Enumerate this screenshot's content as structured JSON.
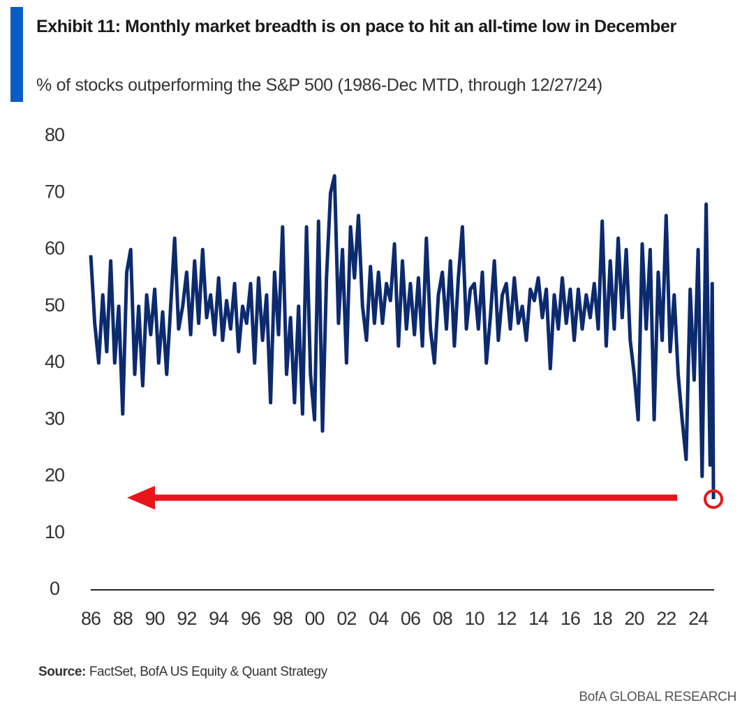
{
  "chart_data": {
    "type": "line",
    "title": "Exhibit 11: Monthly market breadth is on pace to hit an all-time low in December",
    "subtitle": "% of stocks outperforming the S&P 500 (1986-Dec MTD, through 12/27/24)",
    "source_label": "Source:",
    "source": "FactSet, BofA US Equity & Quant Strategy",
    "branding": "BofA GLOBAL RESEARCH",
    "x": [
      1986,
      1986.25,
      1986.5,
      1986.75,
      1987,
      1987.25,
      1987.5,
      1987.75,
      1988,
      1988.25,
      1988.5,
      1988.75,
      1989,
      1989.25,
      1989.5,
      1989.75,
      1990,
      1990.25,
      1990.5,
      1990.75,
      1991,
      1991.25,
      1991.5,
      1991.75,
      1992,
      1992.25,
      1992.5,
      1992.75,
      1993,
      1993.25,
      1993.5,
      1993.75,
      1994,
      1994.25,
      1994.5,
      1994.75,
      1995,
      1995.25,
      1995.5,
      1995.75,
      1996,
      1996.25,
      1996.5,
      1996.75,
      1997,
      1997.25,
      1997.5,
      1997.75,
      1998,
      1998.25,
      1998.5,
      1998.75,
      1999,
      1999.25,
      1999.5,
      1999.75,
      2000,
      2000.25,
      2000.5,
      2000.75,
      2001,
      2001.25,
      2001.5,
      2001.75,
      2002,
      2002.25,
      2002.5,
      2002.75,
      2003,
      2003.25,
      2003.5,
      2003.75,
      2004,
      2004.25,
      2004.5,
      2004.75,
      2005,
      2005.25,
      2005.5,
      2005.75,
      2006,
      2006.25,
      2006.5,
      2006.75,
      2007,
      2007.25,
      2007.5,
      2007.75,
      2008,
      2008.25,
      2008.5,
      2008.75,
      2009,
      2009.25,
      2009.5,
      2009.75,
      2010,
      2010.25,
      2010.5,
      2010.75,
      2011,
      2011.25,
      2011.5,
      2011.75,
      2012,
      2012.25,
      2012.5,
      2012.75,
      2013,
      2013.25,
      2013.5,
      2013.75,
      2014,
      2014.25,
      2014.5,
      2014.75,
      2015,
      2015.25,
      2015.5,
      2015.75,
      2016,
      2016.25,
      2016.5,
      2016.75,
      2017,
      2017.25,
      2017.5,
      2017.75,
      2018,
      2018.25,
      2018.5,
      2018.75,
      2019,
      2019.25,
      2019.5,
      2019.75,
      2020,
      2020.25,
      2020.5,
      2020.75,
      2021,
      2021.25,
      2021.5,
      2021.75,
      2022,
      2022.25,
      2022.5,
      2022.75,
      2023,
      2023.25,
      2023.5,
      2023.75,
      2024,
      2024.25,
      2024.5,
      2024.75,
      2024.88,
      2024.96
    ],
    "series": [
      {
        "name": "% of stocks outperforming",
        "color": "#0c2a6e",
        "values": [
          59,
          47,
          40,
          52,
          42,
          58,
          40,
          50,
          31,
          56,
          60,
          38,
          50,
          36,
          52,
          45,
          53,
          40,
          49,
          38,
          50,
          62,
          46,
          50,
          56,
          45,
          58,
          47,
          60,
          48,
          52,
          45,
          55,
          44,
          51,
          46,
          54,
          42,
          50,
          47,
          54,
          40,
          55,
          44,
          52,
          33,
          56,
          45,
          64,
          38,
          48,
          33,
          50,
          31,
          64,
          38,
          30,
          65,
          28,
          55,
          70,
          73,
          47,
          60,
          40,
          64,
          55,
          66,
          50,
          44,
          57,
          47,
          56,
          47,
          54,
          51,
          61,
          43,
          58,
          46,
          54,
          45,
          55,
          43,
          62,
          46,
          40,
          52,
          56,
          46,
          58,
          43,
          55,
          64,
          46,
          53,
          54,
          46,
          56,
          40,
          48,
          58,
          44,
          52,
          54,
          46,
          55,
          47,
          50,
          44,
          53,
          51,
          55,
          48,
          53,
          39,
          52,
          46,
          55,
          47,
          53,
          44,
          53,
          46,
          52,
          48,
          54,
          46,
          65,
          43,
          58,
          46,
          62,
          48,
          60,
          44,
          38,
          30,
          61,
          46,
          60,
          30,
          56,
          44,
          66,
          42,
          52,
          38,
          30,
          23,
          53,
          37,
          60,
          20,
          68,
          22,
          54,
          16
        ]
      }
    ],
    "xlim": [
      1986,
      2025
    ],
    "ylim": [
      0,
      80
    ],
    "yticks": [
      0,
      10,
      20,
      30,
      40,
      50,
      60,
      70,
      80
    ],
    "xticks": [
      {
        "value": 1986,
        "label": "86"
      },
      {
        "value": 1988,
        "label": "88"
      },
      {
        "value": 1990,
        "label": "90"
      },
      {
        "value": 1992,
        "label": "92"
      },
      {
        "value": 1994,
        "label": "94"
      },
      {
        "value": 1996,
        "label": "96"
      },
      {
        "value": 1998,
        "label": "98"
      },
      {
        "value": 2000,
        "label": "00"
      },
      {
        "value": 2002,
        "label": "02"
      },
      {
        "value": 2004,
        "label": "04"
      },
      {
        "value": 2006,
        "label": "06"
      },
      {
        "value": 2008,
        "label": "08"
      },
      {
        "value": 2010,
        "label": "10"
      },
      {
        "value": 2012,
        "label": "12"
      },
      {
        "value": 2014,
        "label": "14"
      },
      {
        "value": 2016,
        "label": "16"
      },
      {
        "value": 2018,
        "label": "18"
      },
      {
        "value": 2020,
        "label": "20"
      },
      {
        "value": 2022,
        "label": "22"
      },
      {
        "value": 2024,
        "label": "24"
      }
    ]
  }
}
